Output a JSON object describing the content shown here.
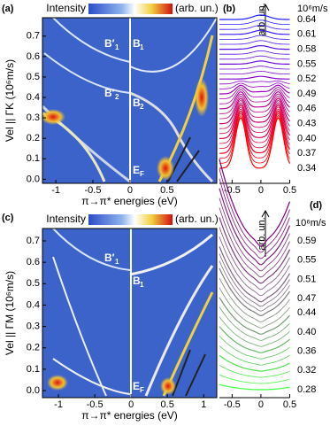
{
  "chart_data": [
    {
      "type": "heatmap",
      "panel": "(a)",
      "colorbar_label": "Intensity",
      "colorbar_unit": "(arb. un.)",
      "xlabel": "π→π* energies (eV)",
      "ylabel": "Vel || ΓK (10⁶m/s)",
      "xlim": [
        -1.18,
        1.17
      ],
      "ylim": [
        -0.02,
        0.79
      ],
      "xticks": [
        -1,
        -0.5,
        0,
        0.5
      ],
      "yticks": [
        {
          "value": 0,
          "label": "0.0"
        },
        0.1,
        0.2,
        0.3,
        0.4,
        0.5,
        0.6,
        0.7
      ],
      "annotations": [
        {
          "text": "B′",
          "sub": "1"
        },
        {
          "text": "B",
          "sub": "1"
        },
        {
          "text": "B′",
          "sub": "2"
        },
        {
          "text": "B",
          "sub": "2"
        },
        {
          "text": "E",
          "sub": "F"
        }
      ]
    },
    {
      "type": "waterfall",
      "panel": "(b)",
      "unit": "10⁶m/s",
      "ylabel": "arb. un.",
      "xlim": [
        -0.72,
        0.5
      ],
      "xticks": [
        -0.5,
        0,
        0.5
      ],
      "colors": [
        "#2020ff",
        "#a000c0",
        "#ff0000"
      ],
      "curve_labels": [
        0.64,
        0.61,
        0.58,
        0.55,
        0.52,
        0.49,
        0.46,
        0.43,
        {
          "value": 0.4,
          "label": "0.40"
        },
        0.37,
        0.34
      ]
    },
    {
      "type": "heatmap",
      "panel": "(c)",
      "colorbar_label": "Intensity",
      "colorbar_unit": "(arb. un.)",
      "xlabel": "π→π* energies (eV)",
      "ylabel": "Vel || ΓM (10⁶m/s)",
      "xlim": [
        -1.22,
        1.18
      ],
      "ylim": [
        -0.033,
        0.758
      ],
      "xticks": [
        -1,
        -0.5,
        0,
        0.5,
        1
      ],
      "yticks": [
        {
          "value": 0,
          "label": "0.0"
        },
        0.1,
        0.2,
        0.3,
        0.4,
        0.5,
        0.6,
        0.7
      ],
      "annotations": [
        {
          "text": "B′",
          "sub": "1"
        },
        {
          "text": "B",
          "sub": "1"
        },
        {
          "text": "E",
          "sub": "F"
        }
      ]
    },
    {
      "type": "waterfall",
      "panel": "(d)",
      "unit": "10⁶m/s",
      "ylabel": "arb. un.",
      "xlim": [
        -0.72,
        0.5
      ],
      "xticks": [
        -0.5,
        0,
        0.5
      ],
      "colors": [
        "#800080",
        "#808080",
        "#40ff40"
      ],
      "curve_labels": [
        0.59,
        0.55,
        0.51,
        0.47,
        0.44,
        {
          "value": 0.4,
          "label": "0.40"
        },
        0.36,
        0.32,
        0.28
      ]
    }
  ]
}
